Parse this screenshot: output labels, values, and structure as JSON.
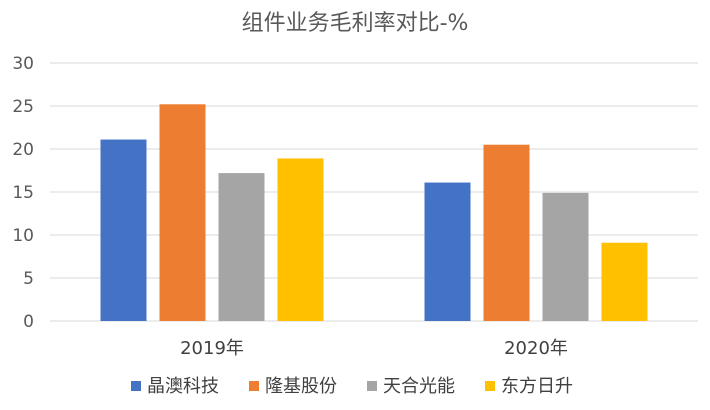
{
  "chart_data": {
    "type": "bar",
    "title": "组件业务毛利率对比-%",
    "xlabel": "",
    "ylabel": "",
    "ylim": [
      0,
      30
    ],
    "yticks": [
      0,
      5,
      10,
      15,
      20,
      25,
      30
    ],
    "grid": true,
    "legend_position": "bottom",
    "categories": [
      "2019年",
      "2020年"
    ],
    "series": [
      {
        "name": "晶澳科技",
        "color": "#4472C4",
        "values": [
          21.1,
          16.1
        ]
      },
      {
        "name": "隆基股份",
        "color": "#ED7D31",
        "values": [
          25.2,
          20.5
        ]
      },
      {
        "name": "天合光能",
        "color": "#A5A5A5",
        "values": [
          17.2,
          14.9
        ]
      },
      {
        "name": "东方日升",
        "color": "#FFC000",
        "values": [
          18.9,
          9.1
        ]
      }
    ]
  }
}
